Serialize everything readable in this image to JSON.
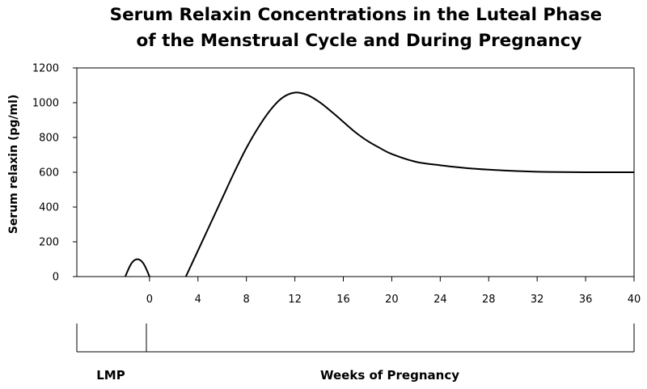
{
  "chart_data": {
    "type": "line",
    "title": [
      "Serum Relaxin Concentrations in the Luteal Phase",
      "of the Menstrual Cycle and During Pregnancy"
    ],
    "ylabel": "Serum relaxin (pg/ml)",
    "ylim": [
      0,
      1200
    ],
    "yticks": [
      0,
      200,
      400,
      600,
      800,
      1000,
      1200
    ],
    "xlim": [
      -6,
      40
    ],
    "xticks": [
      0,
      4,
      8,
      12,
      16,
      20,
      24,
      28,
      32,
      36,
      40
    ],
    "grid": false,
    "phase_labels": {
      "lmp": "LMP",
      "pregnancy": "Weeks of Pregnancy"
    },
    "series": [
      {
        "segment": "luteal-phase",
        "x": [
          -2,
          -1.8,
          -1.6,
          -1.4,
          -1.2,
          -1,
          -0.8,
          -0.6,
          -0.4,
          -0.2,
          0
        ],
        "y": [
          0,
          33,
          63,
          84,
          96,
          100,
          96,
          84,
          63,
          33,
          0
        ]
      },
      {
        "segment": "pregnancy",
        "x": [
          3,
          4,
          5,
          6,
          7,
          8,
          9,
          10,
          11,
          12,
          13,
          14,
          15,
          16,
          17,
          18,
          19,
          20,
          22,
          24,
          26,
          28,
          30,
          32,
          34,
          36,
          38,
          40
        ],
        "y": [
          0,
          150,
          300,
          450,
          600,
          740,
          860,
          960,
          1030,
          1058,
          1045,
          1005,
          950,
          890,
          830,
          780,
          740,
          705,
          660,
          640,
          625,
          615,
          608,
          603,
          601,
          600,
          600,
          600
        ]
      }
    ]
  }
}
